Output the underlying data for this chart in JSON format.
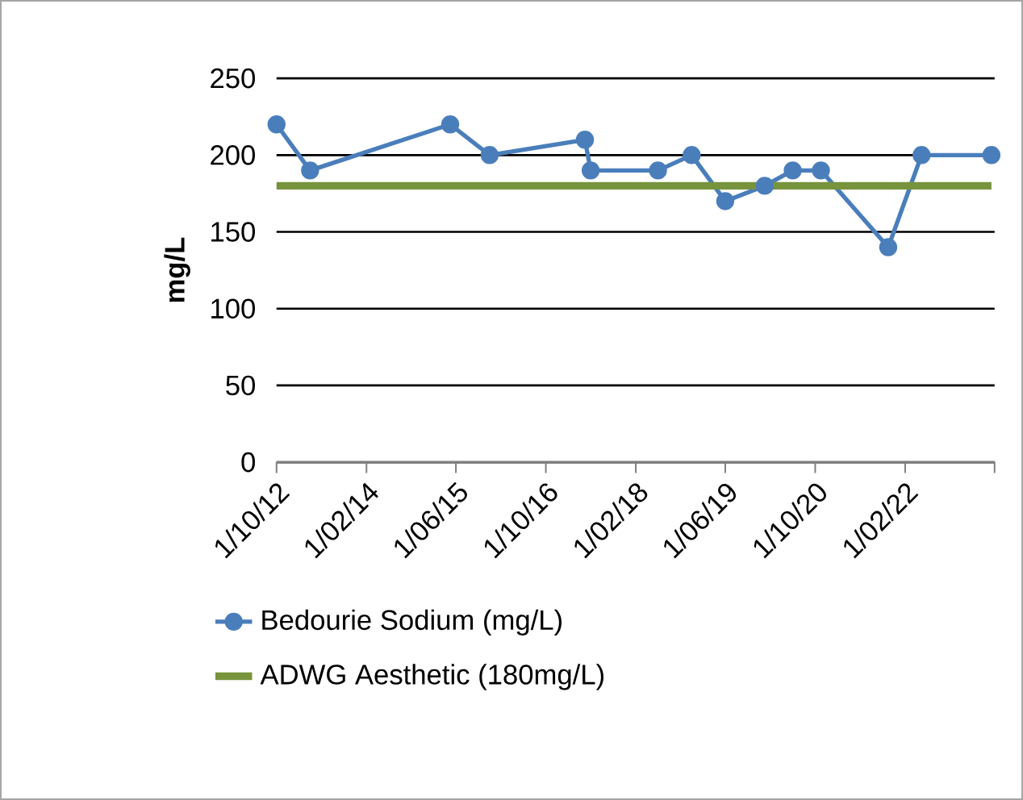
{
  "chart_data": {
    "type": "line",
    "ylabel": "mg/L",
    "xlim": [
      "2012-10-01",
      "2023-06-01"
    ],
    "xticks": [
      {
        "value": "2012-10-01",
        "label": "1/10/12"
      },
      {
        "value": "2014-02-01",
        "label": "1/02/14"
      },
      {
        "value": "2015-06-01",
        "label": "1/06/15"
      },
      {
        "value": "2016-10-01",
        "label": "1/10/16"
      },
      {
        "value": "2018-02-01",
        "label": "1/02/18"
      },
      {
        "value": "2019-06-01",
        "label": "1/06/19"
      },
      {
        "value": "2020-10-01",
        "label": "1/10/20"
      },
      {
        "value": "2022-02-01",
        "label": "1/02/22"
      },
      {
        "value": "2023-06-01",
        "label": null
      }
    ],
    "ylim": [
      0,
      250
    ],
    "yticks": [
      0,
      50,
      100,
      150,
      200,
      250
    ],
    "grid": "y",
    "legend": "bottom",
    "series": [
      {
        "name": "Bedourie Sodium (mg/L)",
        "color": "#4a7ebb",
        "marker": "circle",
        "x": [
          "2012-10-01",
          "2013-04-01",
          "2015-05-01",
          "2015-12-01",
          "2017-05-01",
          "2017-06-01",
          "2018-06-01",
          "2018-12-01",
          "2019-06-01",
          "2020-01-01",
          "2020-06-01",
          "2020-11-01",
          "2021-11-01",
          "2022-05-01",
          "2023-05-15"
        ],
        "values": [
          220,
          190,
          220,
          200,
          210,
          190,
          190,
          200,
          170,
          180,
          190,
          190,
          140,
          200,
          200
        ]
      },
      {
        "name": "ADWG Aesthetic (180mg/L)",
        "color": "#77933c",
        "marker": "none",
        "x": [
          "2012-10-01",
          "2023-05-15"
        ],
        "values": [
          180,
          180
        ]
      }
    ]
  }
}
